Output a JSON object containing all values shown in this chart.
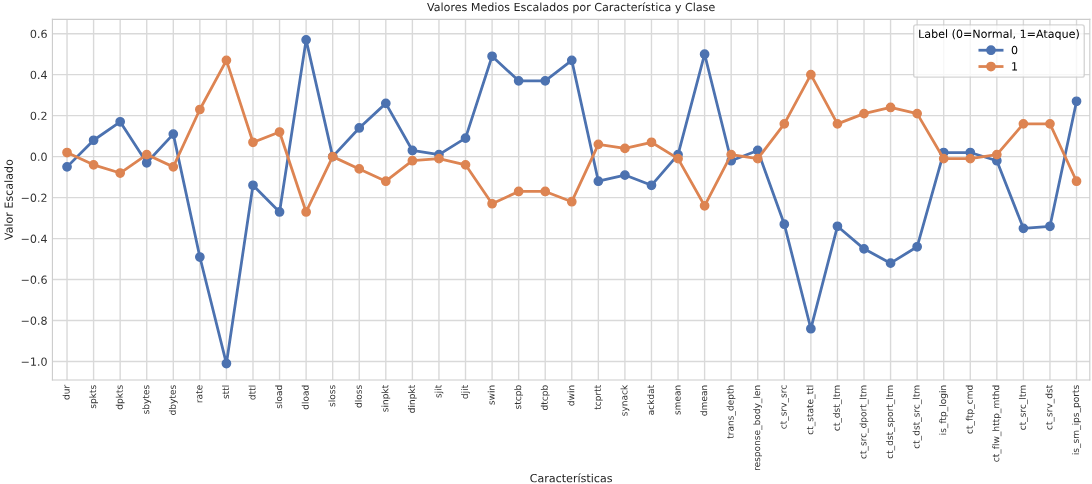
{
  "chart_data": {
    "type": "line",
    "title": "Valores Medios Escalados por Característica y Clase",
    "xlabel": "Características",
    "ylabel": "Valor Escalado",
    "legend_title": "Label (0=Normal, 1=Ataque)",
    "categories": [
      "dur",
      "spkts",
      "dpkts",
      "sbytes",
      "dbytes",
      "rate",
      "sttl",
      "dttl",
      "sload",
      "dload",
      "sloss",
      "dloss",
      "sinpkt",
      "dinpkt",
      "sjit",
      "djit",
      "swin",
      "stcpb",
      "dtcpb",
      "dwin",
      "tcprtt",
      "synack",
      "ackdat",
      "smean",
      "dmean",
      "trans_depth",
      "response_body_len",
      "ct_srv_src",
      "ct_state_ttl",
      "ct_dst_ltm",
      "ct_src_dport_ltm",
      "ct_dst_sport_ltm",
      "ct_dst_src_ltm",
      "is_ftp_login",
      "ct_ftp_cmd",
      "ct_flw_http_mthd",
      "ct_src_ltm",
      "ct_srv_dst",
      "is_sm_ips_ports"
    ],
    "series": [
      {
        "name": "0",
        "color": "#4c72b0",
        "values": [
          -0.05,
          0.08,
          0.17,
          -0.03,
          0.11,
          -0.49,
          -1.01,
          -0.14,
          -0.27,
          0.57,
          0.0,
          0.14,
          0.26,
          0.03,
          0.01,
          0.09,
          0.49,
          0.37,
          0.37,
          0.47,
          -0.12,
          -0.09,
          -0.14,
          0.01,
          0.5,
          -0.02,
          0.03,
          -0.33,
          -0.84,
          -0.34,
          -0.45,
          -0.52,
          -0.44,
          0.02,
          0.02,
          -0.02,
          -0.35,
          -0.34,
          0.27
        ]
      },
      {
        "name": "1",
        "color": "#dd8452",
        "values": [
          0.02,
          -0.04,
          -0.08,
          0.01,
          -0.05,
          0.23,
          0.47,
          0.07,
          0.12,
          -0.27,
          0.0,
          -0.06,
          -0.12,
          -0.02,
          -0.01,
          -0.04,
          -0.23,
          -0.17,
          -0.17,
          -0.22,
          0.06,
          0.04,
          0.07,
          -0.01,
          -0.24,
          0.01,
          -0.01,
          0.16,
          0.4,
          0.16,
          0.21,
          0.24,
          0.21,
          -0.01,
          -0.01,
          0.01,
          0.16,
          0.16,
          -0.12
        ]
      }
    ],
    "ylim": [
      -1.09,
      0.67
    ],
    "yticks": [
      {
        "value": -1.0,
        "label": "−1.0"
      },
      {
        "value": -0.8,
        "label": "−0.8"
      },
      {
        "value": -0.6,
        "label": "−0.6"
      },
      {
        "value": -0.4,
        "label": "−0.4"
      },
      {
        "value": -0.2,
        "label": "−0.2"
      },
      {
        "value": 0.0,
        "label": "0.0"
      },
      {
        "value": 0.2,
        "label": "0.2"
      },
      {
        "value": 0.4,
        "label": "0.4"
      },
      {
        "value": 0.6,
        "label": "0.6"
      }
    ],
    "grid": true,
    "legend": "top right",
    "marker": "circle",
    "line_style": "solid"
  }
}
